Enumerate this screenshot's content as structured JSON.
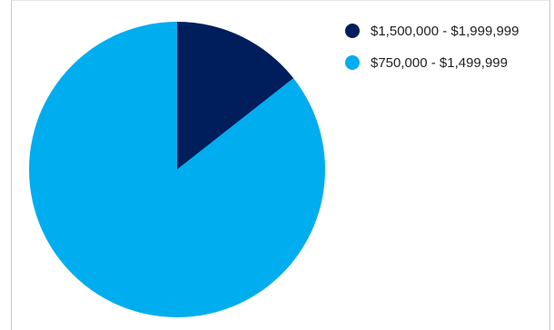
{
  "chart_data": {
    "type": "pie",
    "title": "",
    "categories": [
      "$1,500,000 - $1,999,999",
      "$750,000 - $1,499,999"
    ],
    "values": [
      14.4,
      85.6
    ],
    "colors": [
      "#001e5c",
      "#00adee"
    ],
    "start_angle_deg": 0,
    "direction": "clockwise",
    "legend": {
      "placement": "top-right",
      "items": [
        {
          "label": "$1,500,000 - $1,999,999",
          "color": "#001e5c"
        },
        {
          "label": "$750,000 - $1,499,999",
          "color": "#00adee"
        }
      ]
    }
  }
}
